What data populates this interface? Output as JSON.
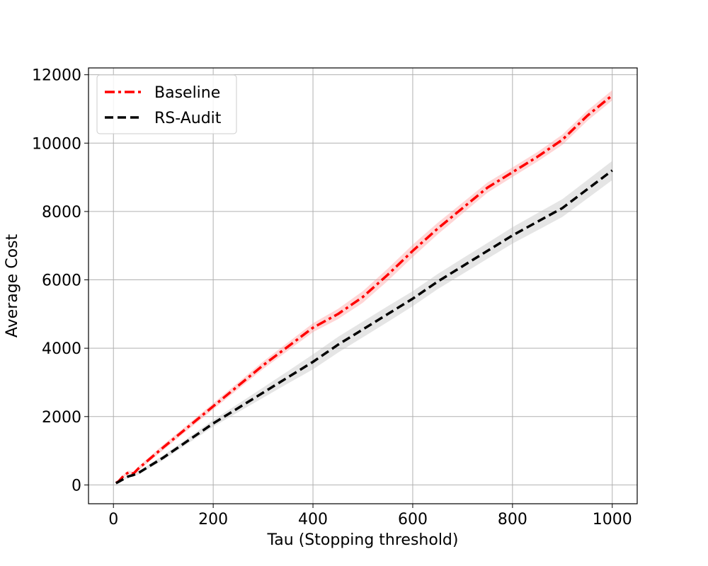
{
  "chart_data": {
    "type": "line",
    "title": "",
    "xlabel": "Tau (Stopping threshold)",
    "ylabel": "Average Cost",
    "xlim": [
      -50,
      1050
    ],
    "ylim": [
      -550,
      12200
    ],
    "xticks": [
      0,
      200,
      400,
      600,
      800,
      1000
    ],
    "yticks": [
      0,
      2000,
      4000,
      6000,
      8000,
      10000,
      12000
    ],
    "xtick_labels": [
      "0",
      "200",
      "400",
      "600",
      "800",
      "1000"
    ],
    "ytick_labels": [
      "0",
      "2000",
      "4000",
      "6000",
      "8000",
      "10000",
      "12000"
    ],
    "grid": true,
    "legend_position": "top-left",
    "series": [
      {
        "name": "Baseline",
        "color": "#ff0000",
        "band_color": "#ff9999",
        "line_style": "dash-dot",
        "x": [
          5,
          10,
          20,
          30,
          40,
          50,
          100,
          150,
          200,
          250,
          300,
          350,
          400,
          450,
          500,
          550,
          600,
          650,
          700,
          750,
          800,
          850,
          900,
          950,
          1000
        ],
        "y": [
          60,
          100,
          260,
          370,
          330,
          480,
          1100,
          1700,
          2300,
          2900,
          3500,
          4050,
          4600,
          5000,
          5500,
          6150,
          6850,
          7500,
          8100,
          8700,
          9150,
          9600,
          10100,
          10800,
          11400
        ],
        "spread": [
          20,
          30,
          40,
          50,
          50,
          60,
          80,
          80,
          90,
          100,
          110,
          120,
          130,
          150,
          170,
          180,
          180,
          170,
          160,
          150,
          140,
          140,
          150,
          150,
          150
        ]
      },
      {
        "name": "RS-Audit",
        "color": "#000000",
        "band_color": "#bfbfbf",
        "line_style": "dashed",
        "x": [
          5,
          10,
          20,
          30,
          40,
          50,
          100,
          150,
          200,
          250,
          300,
          350,
          400,
          450,
          500,
          550,
          600,
          650,
          700,
          750,
          800,
          850,
          900,
          950,
          1000
        ],
        "y": [
          50,
          90,
          170,
          250,
          290,
          350,
          800,
          1300,
          1800,
          2250,
          2700,
          3150,
          3600,
          4100,
          4550,
          5000,
          5450,
          5950,
          6400,
          6850,
          7300,
          7700,
          8100,
          8650,
          9200
        ],
        "spread": [
          20,
          25,
          30,
          40,
          40,
          50,
          70,
          80,
          100,
          120,
          150,
          180,
          220,
          230,
          230,
          230,
          220,
          220,
          230,
          230,
          240,
          250,
          260,
          270,
          280
        ]
      }
    ]
  }
}
